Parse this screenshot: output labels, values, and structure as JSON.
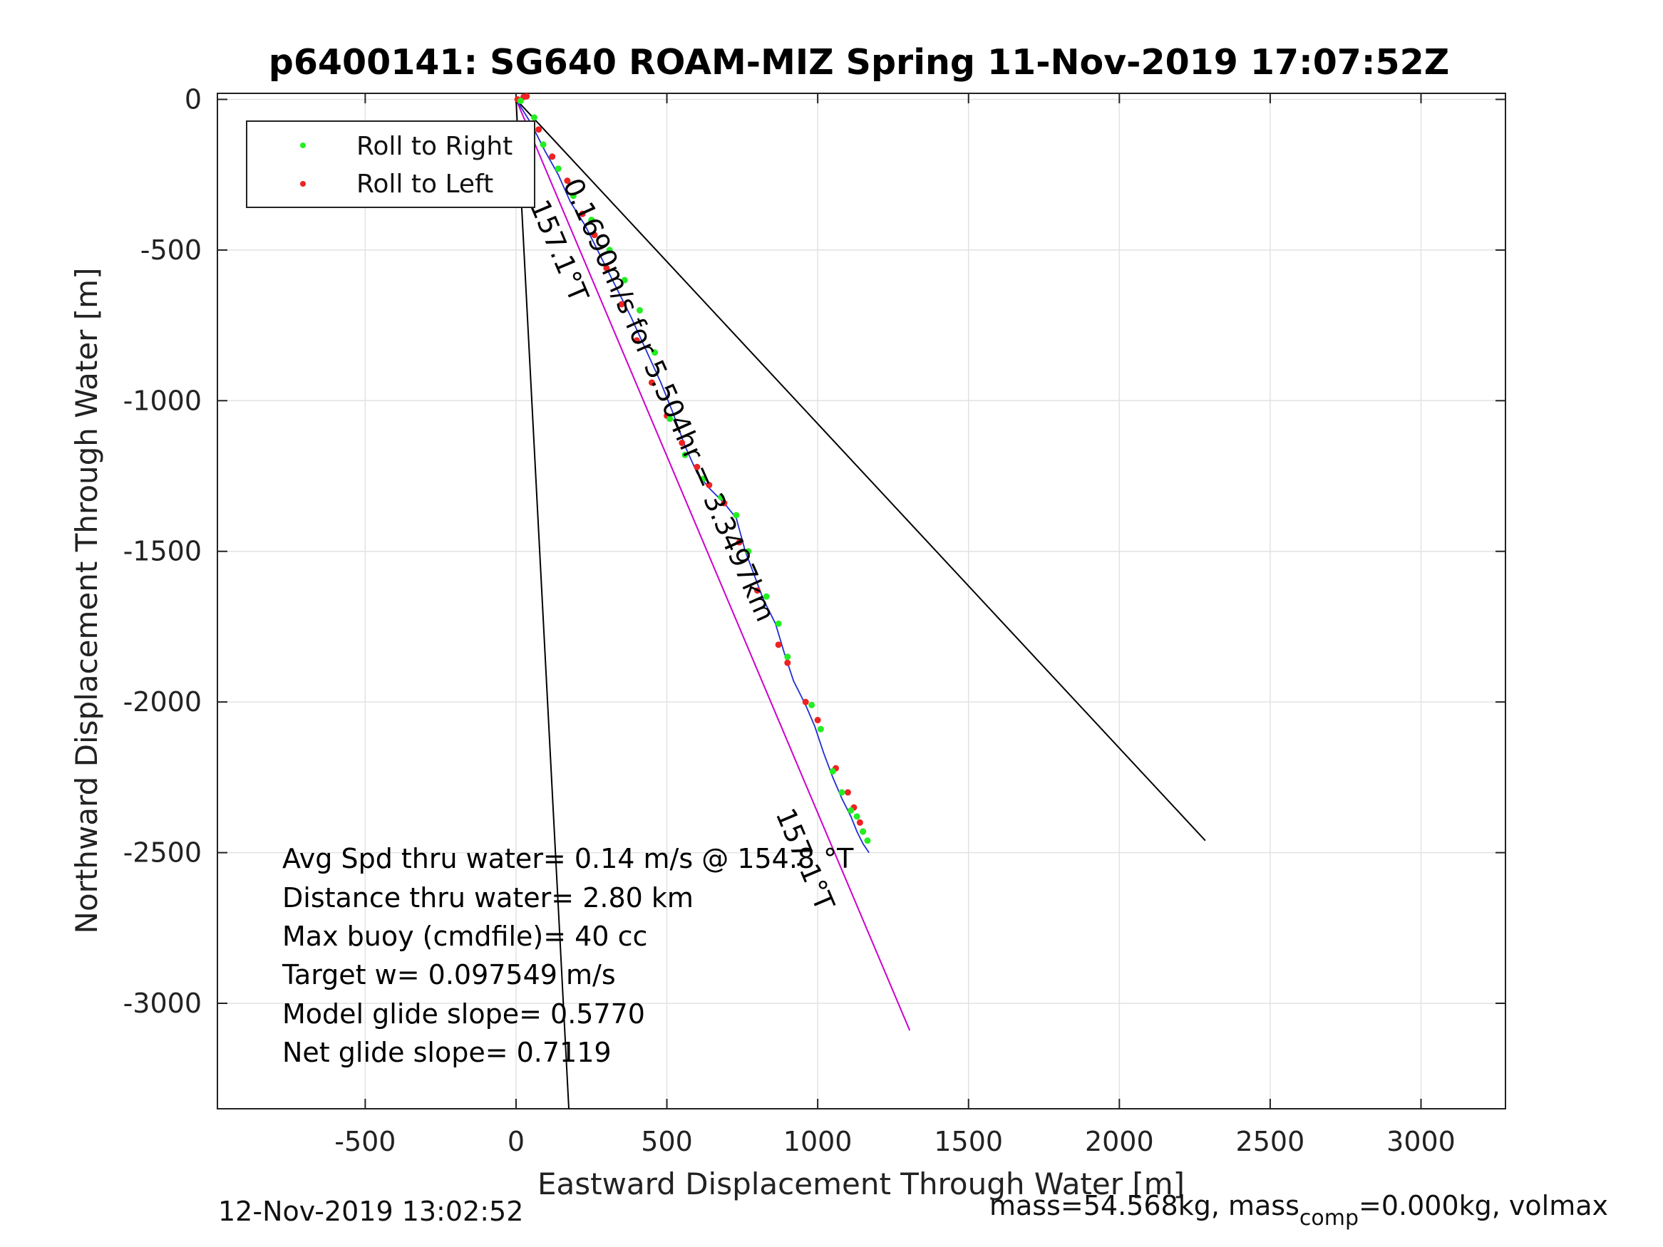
{
  "chart_data": {
    "type": "line",
    "title": "p6400141: SG640 ROAM-MIZ Spring 11-Nov-2019 17:07:52Z",
    "xlabel": "Eastward Displacement Through Water [m]",
    "ylabel": "Northward Displacement Through Water [m]",
    "xlim": [
      -990,
      3280
    ],
    "ylim": [
      -3350,
      20
    ],
    "xticks": [
      -500,
      0,
      500,
      1000,
      1500,
      2000,
      2500,
      3000
    ],
    "xtick_labels": [
      "-500",
      "0",
      "500",
      "1000",
      "1500",
      "2000",
      "2500",
      "3000"
    ],
    "yticks": [
      0,
      -500,
      -1000,
      -1500,
      -2000,
      -2500,
      -3000
    ],
    "ytick_labels": [
      "0",
      "-500",
      "-1000",
      "-1500",
      "-2000",
      "-2500",
      "-3000"
    ],
    "grid": true,
    "legend": {
      "placement": "top-left",
      "entries": [
        {
          "label": "Roll to Right",
          "color": "#22ee22"
        },
        {
          "label": "Roll to Left",
          "color": "#ee2222"
        }
      ]
    },
    "track": {
      "color": "#1f2fd0",
      "x": [
        0,
        50,
        95,
        140,
        180,
        230,
        280,
        330,
        380,
        430,
        480,
        520,
        560,
        600,
        640,
        690,
        730,
        760,
        790,
        820,
        860,
        890,
        920,
        960,
        990,
        1020,
        1050,
        1080,
        1110,
        1130,
        1150,
        1170
      ],
      "y": [
        0,
        -80,
        -170,
        -250,
        -340,
        -420,
        -520,
        -620,
        -720,
        -830,
        -940,
        -1040,
        -1150,
        -1240,
        -1290,
        -1340,
        -1390,
        -1500,
        -1580,
        -1660,
        -1740,
        -1840,
        -1930,
        -2010,
        -2080,
        -2170,
        -2250,
        -2320,
        -2380,
        -2430,
        -2470,
        -2500
      ]
    },
    "roll_right": {
      "x": [
        15,
        60,
        90,
        140,
        190,
        250,
        310,
        360,
        410,
        460,
        510,
        560,
        620,
        680,
        730,
        770,
        830,
        870,
        900,
        980,
        1010,
        1050,
        1080,
        1110,
        1130,
        1150,
        1165
      ],
      "y": [
        -5,
        -60,
        -150,
        -230,
        -320,
        -400,
        -500,
        -600,
        -700,
        -840,
        -1060,
        -1180,
        -1260,
        -1320,
        -1380,
        -1500,
        -1650,
        -1740,
        -1850,
        -2010,
        -2090,
        -2230,
        -2300,
        -2360,
        -2380,
        -2430,
        -2460
      ]
    },
    "roll_left": {
      "x": [
        5,
        25,
        35,
        75,
        120,
        170,
        220,
        260,
        300,
        350,
        400,
        450,
        500,
        550,
        600,
        640,
        690,
        740,
        800,
        870,
        900,
        960,
        1000,
        1060,
        1100,
        1120,
        1140,
        1150
      ],
      "y": [
        0,
        8,
        10,
        -100,
        -190,
        -270,
        -380,
        -450,
        -560,
        -680,
        -800,
        -940,
        -1050,
        -1140,
        -1220,
        -1280,
        -1340,
        -1470,
        -1630,
        -1810,
        -1870,
        -2000,
        -2060,
        -2220,
        -2300,
        -2350,
        -2400,
        -2430
      ]
    },
    "lines": [
      {
        "name": "heading-line-magenta",
        "color": "#cc00cc",
        "x": [
          0,
          1305
        ],
        "y": [
          0,
          -3090
        ]
      },
      {
        "name": "heading-line-black-left",
        "color": "#000000",
        "x": [
          0,
          175
        ],
        "y": [
          0,
          -3350
        ]
      },
      {
        "name": "heading-line-black-right",
        "color": "#000000",
        "x": [
          0,
          2285
        ],
        "y": [
          0,
          -2460
        ]
      }
    ],
    "annotations": [
      {
        "text": "0.1690m/s for 5.504hr = 3.3497km",
        "x": 155,
        "y": -280,
        "angle": 66
      },
      {
        "text": "157.1°T",
        "x": 45,
        "y": -350,
        "angle": 67
      },
      {
        "text": "157.1°T",
        "x": 860,
        "y": -2370,
        "angle": 67
      }
    ],
    "stats_text": [
      "Avg Spd thru water=  0.14 m/s @ 154.8 °T",
      "Distance thru water=  2.80 km",
      "Max buoy (cmdfile)= 40 cc",
      "Target w= 0.097549 m/s",
      "Model glide slope= 0.5770",
      "Net glide slope= 0.7119"
    ]
  },
  "footer": {
    "left": "12-Nov-2019 13:02:52",
    "right_prefix": "mass=54.568kg, mass",
    "right_sub": "comp",
    "right_suffix": "=0.000kg, volmax"
  }
}
